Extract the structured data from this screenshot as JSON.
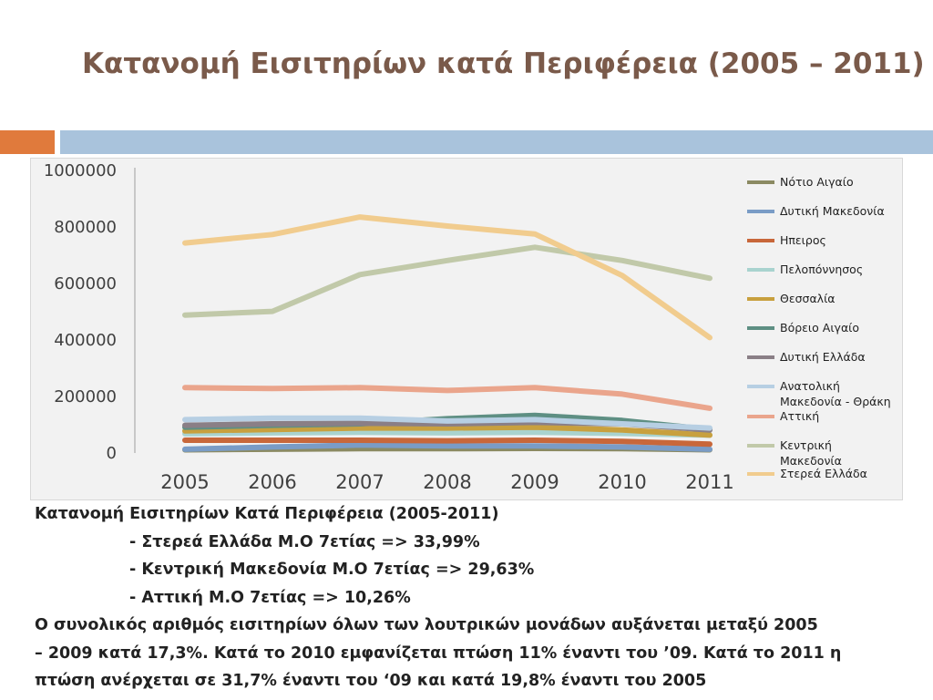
{
  "slide": {
    "title": "Κατανομή Εισιτηρίων κατά Περιφέρεια (2005 – 2011)",
    "accent_colors": {
      "orange": "#e07a3c",
      "blue": "#a9c3dc"
    }
  },
  "notes": {
    "heading": "Κατανομή Εισιτηρίων Κατά Περιφέρεια (2005-2011)",
    "bullets": [
      "- Στερεά Ελλάδα Μ.Ο 7ετίας => 33,99%",
      "- Κεντρική Μακεδονία Μ.Ο 7ετίας => 29,63%",
      "- Αττική Μ.Ο 7ετίας => 10,26%"
    ],
    "paragraph_lines": [
      "Ο συνολικός αριθμός εισιτηρίων όλων των λουτρικών μονάδων αυξάνεται μεταξύ 2005",
      "– 2009 κατά 17,3%. Κατά το 2010 εμφανίζεται πτώση 11% έναντι του ’09. Κατά το 2011 η",
      "πτώση ανέρχεται σε 31,7% έναντι του ‘09 και κατά 19,8% έναντι του 2005"
    ]
  },
  "chart_data": {
    "type": "line",
    "title": "",
    "x": [
      "2005",
      "2006",
      "2007",
      "2008",
      "2009",
      "2010",
      "2011"
    ],
    "ylim": [
      0,
      1000000
    ],
    "yticks": [
      "0",
      "200000",
      "400000",
      "600000",
      "800000",
      "1000000"
    ],
    "grid": false,
    "legend_position": "right",
    "series": [
      {
        "name": "Νότιο Αιγαίο",
        "color": "#8b8a62",
        "values": [
          8000,
          10000,
          12000,
          12000,
          13000,
          12000,
          8000
        ]
      },
      {
        "name": "Δυτική Μακεδονία",
        "color": "#7a9cc6",
        "values": [
          10000,
          18000,
          25000,
          22000,
          22000,
          18000,
          10000
        ]
      },
      {
        "name": "Ηπειρος",
        "color": "#c8673a",
        "values": [
          42000,
          42000,
          42000,
          40000,
          42000,
          38000,
          28000
        ]
      },
      {
        "name": "Πελοπόννησος",
        "color": "#a9d3cf",
        "values": [
          65000,
          68000,
          70000,
          68000,
          70000,
          66000,
          60000
        ]
      },
      {
        "name": "Θεσσαλία",
        "color": "#c8a03e",
        "values": [
          75000,
          80000,
          85000,
          85000,
          88000,
          78000,
          60000
        ]
      },
      {
        "name": "Βόρειο Αιγαίο",
        "color": "#5e8f83",
        "values": [
          88000,
          95000,
          100000,
          118000,
          130000,
          112000,
          80000
        ]
      },
      {
        "name": "Δυτική Ελλάδα",
        "color": "#8a7f86",
        "values": [
          95000,
          100000,
          102000,
          100000,
          105000,
          100000,
          78000
        ]
      },
      {
        "name": "Ανατολική Μακεδονία - Θράκη",
        "color": "#b7cfe3",
        "values": [
          115000,
          120000,
          120000,
          110000,
          115000,
          100000,
          85000
        ]
      },
      {
        "name": "Αττική",
        "color": "#eaa58c",
        "values": [
          228000,
          225000,
          228000,
          218000,
          228000,
          205000,
          155000
        ]
      },
      {
        "name": "Κεντρική Μακεδονία",
        "color": "#c1c9a9",
        "values": [
          485000,
          498000,
          628000,
          678000,
          725000,
          678000,
          615000
        ]
      },
      {
        "name": "Στερεά Ελλάδα",
        "color": "#f1cc8e",
        "values": [
          740000,
          770000,
          832000,
          800000,
          772000,
          625000,
          405000
        ]
      }
    ]
  }
}
